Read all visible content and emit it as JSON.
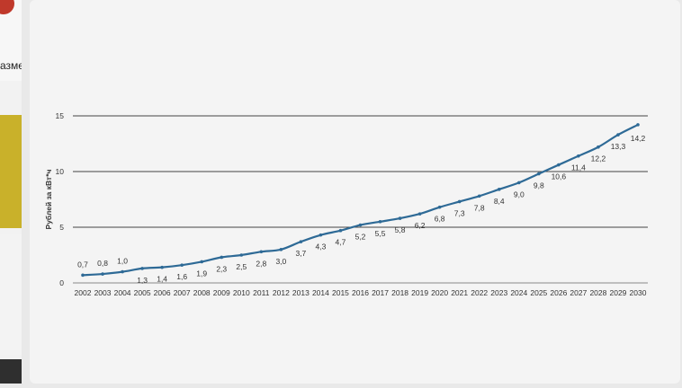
{
  "background": {
    "fragment_text": "азме"
  },
  "chart_data": {
    "type": "line",
    "title": "",
    "xlabel": "",
    "ylabel": "Рублей за кВт*ч",
    "ylim": [
      0,
      15
    ],
    "yticks": [
      "0",
      "5",
      "10",
      "15"
    ],
    "grid": true,
    "line_color": "#2e6a96",
    "x": [
      "2002",
      "2003",
      "2004",
      "2005",
      "2006",
      "2007",
      "2008",
      "2009",
      "2010",
      "2011",
      "2012",
      "2013",
      "2014",
      "2015",
      "2016",
      "2017",
      "2018",
      "2019",
      "2020",
      "2021",
      "2022",
      "2023",
      "2024",
      "2025",
      "2026",
      "2027",
      "2028",
      "2029",
      "2030"
    ],
    "values": [
      0.7,
      0.8,
      1.0,
      1.3,
      1.4,
      1.6,
      1.9,
      2.3,
      2.5,
      2.8,
      3.0,
      3.7,
      4.3,
      4.7,
      5.2,
      5.5,
      5.8,
      6.2,
      6.8,
      7.3,
      7.8,
      8.4,
      9.0,
      9.8,
      10.6,
      11.4,
      12.2,
      13.3,
      14.2
    ],
    "labels": [
      "0,7",
      "0,8",
      "1,0",
      "1,3",
      "1,4",
      "1,6",
      "1,9",
      "2,3",
      "2,5",
      "2,8",
      "3,0",
      "3,7",
      "4,3",
      "4,7",
      "5,2",
      "5,5",
      "5,8",
      "6,2",
      "6,8",
      "7,3",
      "7,8",
      "8,4",
      "9,0",
      "9,8",
      "10,6",
      "11,4",
      "12,2",
      "13,3",
      "14,2"
    ]
  }
}
